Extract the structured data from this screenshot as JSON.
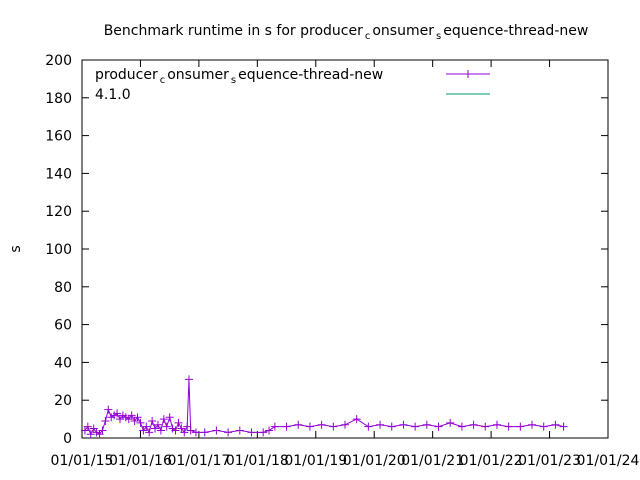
{
  "chart_data": {
    "type": "line",
    "title": [
      "Benchmark runtime in s for producer",
      "c",
      "onsumer",
      "s",
      "equence-thread-new"
    ],
    "ylabel": "s",
    "xlim": [
      2015,
      2024
    ],
    "xticks": [
      {
        "value": 2015,
        "label": "01/01/15"
      },
      {
        "value": 2016,
        "label": "01/01/16"
      },
      {
        "value": 2017,
        "label": "01/01/17"
      },
      {
        "value": 2018,
        "label": "01/01/18"
      },
      {
        "value": 2019,
        "label": "01/01/19"
      },
      {
        "value": 2020,
        "label": "01/01/20"
      },
      {
        "value": 2021,
        "label": "01/01/21"
      },
      {
        "value": 2022,
        "label": "01/01/22"
      },
      {
        "value": 2023,
        "label": "01/01/23"
      },
      {
        "value": 2024,
        "label": "01/01/24"
      }
    ],
    "ylim": [
      0,
      200
    ],
    "yticks": [
      0,
      20,
      40,
      60,
      80,
      100,
      120,
      140,
      160,
      180,
      200
    ],
    "grid": false,
    "legend": "top-left",
    "series": [
      {
        "name": [
          "producer",
          "c",
          "onsumer",
          "s",
          "equence-thread-new"
        ],
        "color": "#9400d3",
        "x": [
          2015.05,
          2015.1,
          2015.15,
          2015.2,
          2015.25,
          2015.3,
          2015.35,
          2015.4,
          2015.45,
          2015.5,
          2015.55,
          2015.6,
          2015.65,
          2015.7,
          2015.75,
          2015.8,
          2015.85,
          2015.9,
          2015.95,
          2016.0,
          2016.05,
          2016.1,
          2016.15,
          2016.2,
          2016.25,
          2016.3,
          2016.35,
          2016.4,
          2016.45,
          2016.5,
          2016.55,
          2016.6,
          2016.65,
          2016.7,
          2016.75,
          2016.8,
          2016.83,
          2016.86,
          2016.95,
          2017.1,
          2017.3,
          2017.5,
          2017.7,
          2017.9,
          2018.1,
          2018.2,
          2018.3,
          2018.5,
          2018.7,
          2018.9,
          2019.1,
          2019.3,
          2019.5,
          2019.7,
          2019.9,
          2020.1,
          2020.3,
          2020.5,
          2020.7,
          2020.9,
          2021.1,
          2021.3,
          2021.5,
          2021.7,
          2021.9,
          2022.1,
          2022.3,
          2022.5,
          2022.7,
          2022.9,
          2023.1,
          2023.24
        ],
        "values": [
          4,
          6,
          2,
          5,
          3,
          2,
          4,
          9,
          15,
          11,
          12,
          13,
          10,
          12,
          11,
          10,
          12,
          9,
          11,
          8,
          4,
          6,
          3,
          9,
          5,
          7,
          4,
          10,
          6,
          11,
          5,
          4,
          8,
          5,
          3,
          6,
          31,
          4,
          3,
          3,
          4,
          3,
          4,
          3,
          3,
          4,
          6,
          6,
          7,
          6,
          7,
          6,
          7,
          10,
          6,
          7,
          6,
          7,
          6,
          7,
          6,
          8,
          6,
          7,
          6,
          7,
          6,
          6,
          7,
          6,
          7,
          6
        ]
      },
      {
        "name": "4.1.0",
        "color": "#009e73",
        "x": [],
        "values": []
      }
    ]
  }
}
